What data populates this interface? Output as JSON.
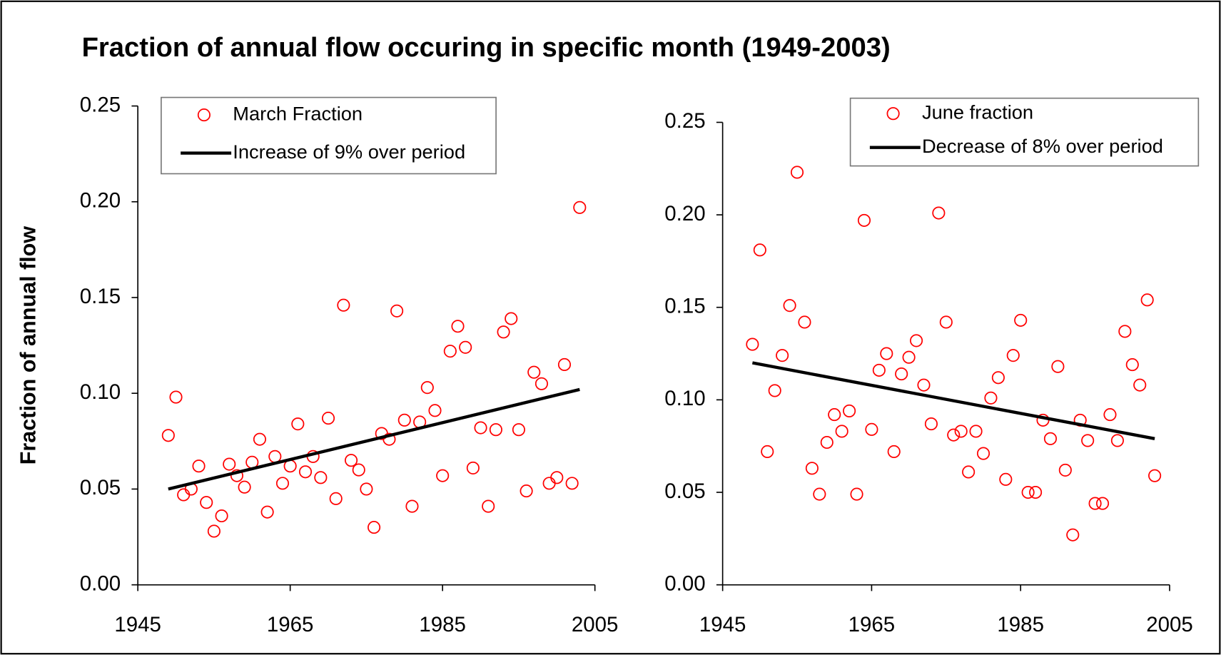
{
  "title": "Fraction of annual flow occuring in specific month (1949-2003)",
  "chart_data": [
    {
      "type": "scatter",
      "ylabel": "Fraction of annual flow",
      "legend": "upper left",
      "xlim": [
        1945,
        2005
      ],
      "xticks": [
        1945,
        1965,
        1985,
        2005
      ],
      "ylim": [
        0,
        0.25
      ],
      "yticks": [
        {
          "value": 0,
          "label": "0.00"
        },
        0.05,
        {
          "value": 0.1,
          "label": "0.10"
        },
        0.15,
        {
          "value": 0.2,
          "label": "0.20"
        },
        0.25
      ],
      "series": [
        {
          "name": "March Fraction",
          "color": "#ff0000",
          "mode": "markers",
          "x": [
            1949,
            1950,
            1951,
            1952,
            1953,
            1954,
            1955,
            1956,
            1957,
            1958,
            1959,
            1960,
            1961,
            1962,
            1963,
            1964,
            1965,
            1966,
            1967,
            1968,
            1969,
            1970,
            1971,
            1972,
            1973,
            1974,
            1975,
            1976,
            1977,
            1978,
            1979,
            1980,
            1981,
            1982,
            1983,
            1984,
            1985,
            1986,
            1987,
            1988,
            1989,
            1990,
            1991,
            1992,
            1993,
            1994,
            1995,
            1996,
            1997,
            1998,
            1999,
            2000,
            2001,
            2002,
            2003
          ],
          "values": [
            0.078,
            0.098,
            0.047,
            0.05,
            0.062,
            0.043,
            0.028,
            0.036,
            0.063,
            0.057,
            0.051,
            0.064,
            0.076,
            0.038,
            0.067,
            0.053,
            0.062,
            0.084,
            0.059,
            0.067,
            0.056,
            0.087,
            0.045,
            0.146,
            0.065,
            0.06,
            0.05,
            0.03,
            0.079,
            0.076,
            0.143,
            0.086,
            0.041,
            0.085,
            0.103,
            0.091,
            0.057,
            0.122,
            0.135,
            0.124,
            0.061,
            0.082,
            0.041,
            0.081,
            0.132,
            0.139,
            0.081,
            0.049,
            0.111,
            0.105,
            0.053,
            0.056,
            0.115,
            0.053,
            0.197
          ]
        },
        {
          "name": "Increase of 9% over period",
          "color": "#000000",
          "mode": "line",
          "x": [
            1949,
            2003
          ],
          "values": [
            0.05,
            0.102
          ]
        }
      ]
    },
    {
      "type": "scatter",
      "legend": "upper right",
      "xlim": [
        1945,
        2005
      ],
      "xticks": [
        1945,
        1965,
        1985,
        2005
      ],
      "ylim": [
        0,
        0.25
      ],
      "yticks": [
        {
          "value": 0,
          "label": "0.00"
        },
        0.05,
        {
          "value": 0.1,
          "label": "0.10"
        },
        0.15,
        {
          "value": 0.2,
          "label": "0.20"
        },
        0.25
      ],
      "series": [
        {
          "name": "June fraction",
          "color": "#ff0000",
          "mode": "markers",
          "x": [
            1949,
            1950,
            1951,
            1952,
            1953,
            1954,
            1955,
            1956,
            1957,
            1958,
            1959,
            1960,
            1961,
            1962,
            1963,
            1964,
            1965,
            1966,
            1967,
            1968,
            1969,
            1970,
            1971,
            1972,
            1973,
            1974,
            1975,
            1976,
            1977,
            1978,
            1979,
            1980,
            1981,
            1982,
            1983,
            1984,
            1985,
            1986,
            1987,
            1988,
            1989,
            1990,
            1991,
            1992,
            1993,
            1994,
            1995,
            1996,
            1997,
            1998,
            1999,
            2000,
            2001,
            2002,
            2003
          ],
          "values": [
            0.13,
            0.181,
            0.072,
            0.105,
            0.124,
            0.151,
            0.223,
            0.142,
            0.063,
            0.049,
            0.077,
            0.092,
            0.083,
            0.094,
            0.049,
            0.197,
            0.084,
            0.116,
            0.125,
            0.072,
            0.114,
            0.123,
            0.132,
            0.108,
            0.087,
            0.201,
            0.142,
            0.081,
            0.083,
            0.061,
            0.083,
            0.071,
            0.101,
            0.112,
            0.057,
            0.124,
            0.143,
            0.05,
            0.05,
            0.089,
            0.079,
            0.118,
            0.062,
            0.027,
            0.089,
            0.078,
            0.044,
            0.044,
            0.092,
            0.078,
            0.137,
            0.119,
            0.108,
            0.154,
            0.059
          ]
        },
        {
          "name": "Decrease of 8% over period",
          "color": "#000000",
          "mode": "line",
          "x": [
            1949,
            2003
          ],
          "values": [
            0.12,
            0.079
          ]
        }
      ]
    }
  ]
}
